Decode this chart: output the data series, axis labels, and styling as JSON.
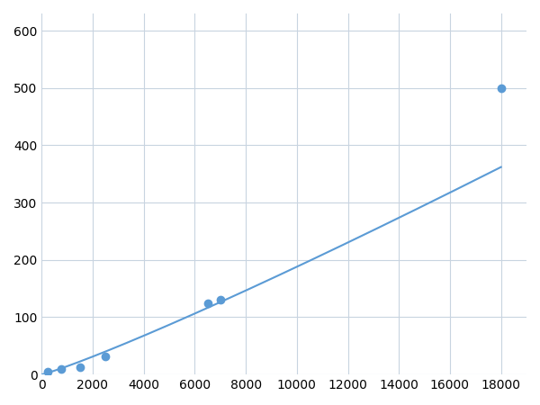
{
  "x_data": [
    250,
    750,
    1500,
    2500,
    6500,
    7000,
    18000
  ],
  "y_data": [
    5,
    10,
    12,
    32,
    125,
    130,
    500
  ],
  "line_color": "#5b9bd5",
  "marker_color": "#5b9bd5",
  "marker_size": 6,
  "xlim": [
    0,
    19000
  ],
  "ylim": [
    0,
    630
  ],
  "xticks": [
    0,
    2000,
    4000,
    6000,
    8000,
    10000,
    12000,
    14000,
    16000,
    18000
  ],
  "yticks": [
    0,
    100,
    200,
    300,
    400,
    500,
    600
  ],
  "grid_color": "#c8d4e0",
  "background_color": "#ffffff",
  "tick_fontsize": 10
}
